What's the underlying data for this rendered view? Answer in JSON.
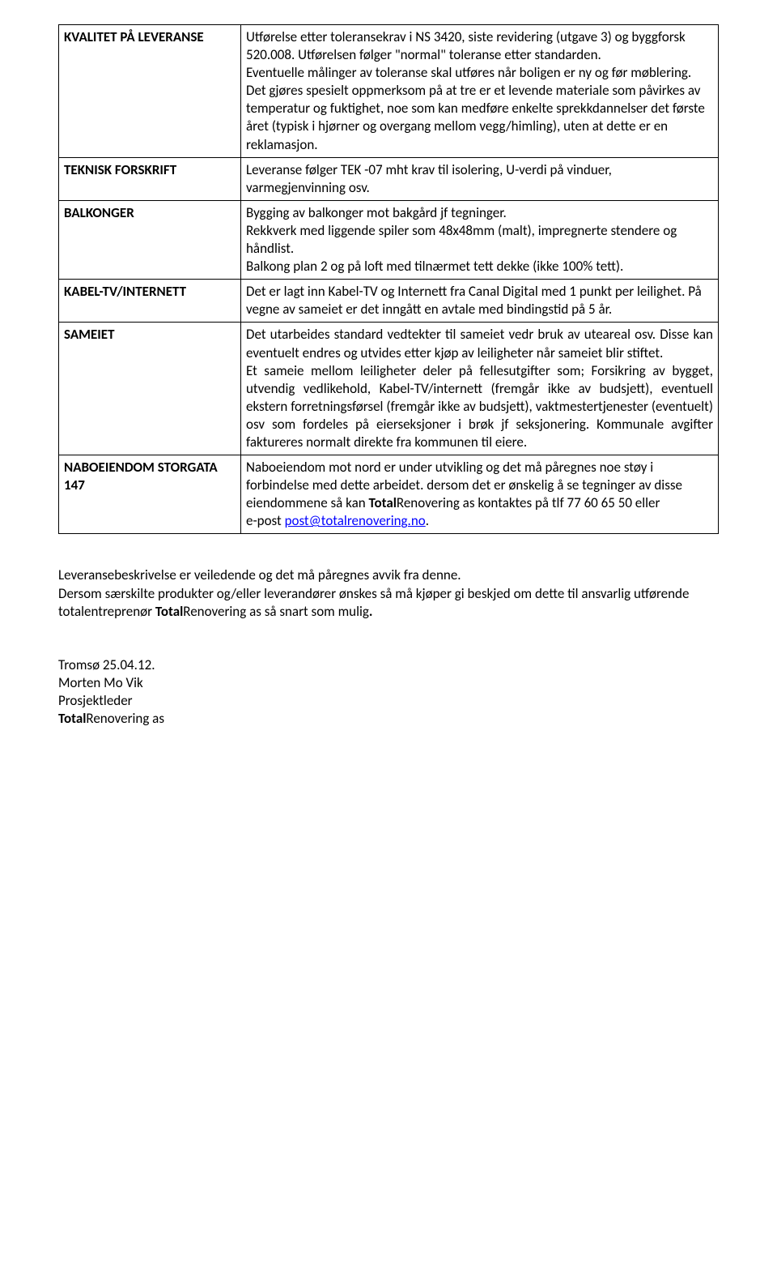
{
  "rows": [
    {
      "label": "KVALITET PÅ LEVERANSE",
      "content": "Utførelse etter toleransekrav i NS 3420, siste revidering (utgave 3) og byggforsk 520.008. Utførelsen følger \"normal\" toleranse etter standarden.\nEventuelle målinger av toleranse skal utføres når boligen er ny og før møblering. Det gjøres spesielt oppmerksom på at tre er et levende materiale som påvirkes av temperatur og fuktighet, noe som kan medføre enkelte sprekkdannelser det første året (typisk i hjørner og overgang mellom vegg/himling), uten at dette er en reklamasjon."
    },
    {
      "label": "TEKNISK FORSKRIFT",
      "content": "Leveranse følger TEK -07 mht krav til isolering, U-verdi på vinduer, varmegjenvinning osv."
    },
    {
      "label": "BALKONGER",
      "content": "Bygging av balkonger mot bakgård jf tegninger.\nRekkverk med liggende spiler som 48x48mm (malt), impregnerte stendere og håndlist.\nBalkong plan 2 og på loft med tilnærmet tett dekke (ikke 100% tett)."
    },
    {
      "label": "KABEL-TV/INTERNETT",
      "content": "Det er lagt inn Kabel-TV og Internett fra Canal Digital med 1 punkt per leilighet. På vegne av sameiet er det inngått en avtale med bindingstid på 5 år."
    },
    {
      "label": "SAMEIET",
      "justify": true,
      "content": "Det utarbeides standard vedtekter til sameiet vedr bruk av uteareal osv. Disse kan eventuelt endres og utvides etter kjøp av leiligheter når sameiet blir stiftet.\nEt sameie mellom leiligheter deler på fellesutgifter som; Forsikring av bygget, utvendig vedlikehold, Kabel-TV/internett (fremgår ikke av budsjett), eventuell ekstern forretningsførsel (fremgår ikke av budsjett), vaktmestertjenester (eventuelt) osv som fordeles på eierseksjoner i brøk jf seksjonering. Kommunale avgifter faktureres normalt direkte fra kommunen til eiere."
    },
    {
      "label": "NABOEIENDOM STORGATA 147",
      "content_html": true,
      "content": "Naboeiendom mot nord er under utvikling og det må påregnes noe støy i forbindelse med dette arbeidet. dersom det er ønskelig å se tegninger av disse eiendommene så kan <span class=\"brand-bold\">Total</span>Renovering as kontaktes på tlf 77 60 65 50 eller<br>e-post <a class=\"mail\" href=\"#\" data-name=\"email-link\" data-interactable=\"true\">post@totalrenovering.no</a>."
    }
  ],
  "footer": {
    "p1": "Leveransebeskrivelse er veiledende og det må påregnes avvik fra denne.",
    "p2_pre": "Dersom særskilte produkter og/eller leverandører ønskes så må kjøper gi beskjed om dette til ansvarlig utførende totalentreprenør ",
    "p2_brand": "Total",
    "p2_post": "Renovering as så snart som mulig",
    "p2_end": "."
  },
  "signature": {
    "date": "Tromsø 25.04.12.",
    "name": "Morten Mo Vik",
    "title": "Prosjektleder",
    "company_brand": "Total",
    "company_rest": "Renovering as"
  }
}
